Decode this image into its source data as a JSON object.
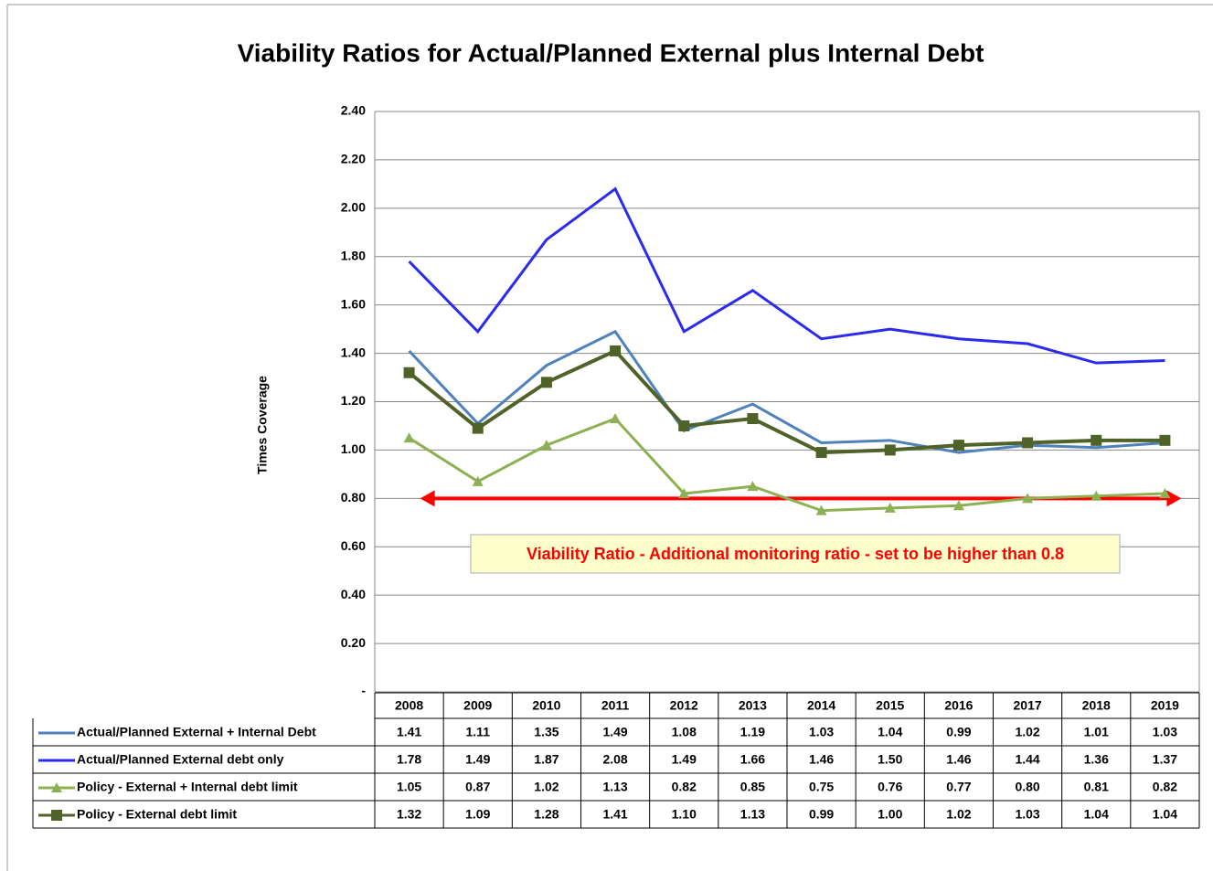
{
  "chart_data": {
    "type": "line",
    "title": "Viability Ratios for Actual/Planned External plus Internal Debt",
    "y_label": "Times Coverage",
    "categories": [
      "2008",
      "2009",
      "2010",
      "2011",
      "2012",
      "2013",
      "2014",
      "2015",
      "2016",
      "2017",
      "2018",
      "2019"
    ],
    "ylim": [
      0,
      2.4
    ],
    "yticks": [
      {
        "value": 0,
        "label": "-"
      },
      {
        "value": 0.2,
        "label": "0.20"
      },
      {
        "value": 0.4,
        "label": "0.40"
      },
      {
        "value": 0.6,
        "label": "0.60"
      },
      {
        "value": 0.8,
        "label": "0.80"
      },
      {
        "value": 1.0,
        "label": "1.00"
      },
      {
        "value": 1.2,
        "label": "1.20"
      },
      {
        "value": 1.4,
        "label": "1.40"
      },
      {
        "value": 1.6,
        "label": "1.60"
      },
      {
        "value": 1.8,
        "label": "1.80"
      },
      {
        "value": 2.0,
        "label": "2.00"
      },
      {
        "value": 2.2,
        "label": "2.20"
      },
      {
        "value": 2.4,
        "label": "2.40"
      }
    ],
    "grid": true,
    "series": [
      {
        "name": "Actual/Planned External + Internal Debt",
        "color": "#4f81bd",
        "marker": "none",
        "values": [
          1.41,
          1.11,
          1.35,
          1.49,
          1.08,
          1.19,
          1.03,
          1.04,
          0.99,
          1.02,
          1.01,
          1.03
        ],
        "value_labels": [
          "1.41",
          "1.11",
          "1.35",
          "1.49",
          "1.08",
          "1.19",
          "1.03",
          "1.04",
          "0.99",
          "1.02",
          "1.01",
          "1.03"
        ]
      },
      {
        "name": "Actual/Planned External debt only",
        "color": "#2b2bef",
        "marker": "none",
        "values": [
          1.78,
          1.49,
          1.87,
          2.08,
          1.49,
          1.66,
          1.46,
          1.5,
          1.46,
          1.44,
          1.36,
          1.37
        ],
        "value_labels": [
          "1.78",
          "1.49",
          "1.87",
          "2.08",
          "1.49",
          "1.66",
          "1.46",
          "1.50",
          "1.46",
          "1.44",
          "1.36",
          "1.37"
        ]
      },
      {
        "name": "Policy - External + Internal debt limit",
        "color": "#8db052",
        "marker": "triangle",
        "values": [
          1.05,
          0.87,
          1.02,
          1.13,
          0.82,
          0.85,
          0.75,
          0.76,
          0.77,
          0.8,
          0.81,
          0.82
        ],
        "value_labels": [
          "1.05",
          "0.87",
          "1.02",
          "1.13",
          "0.82",
          "0.85",
          "0.75",
          "0.76",
          "0.77",
          "0.80",
          "0.81",
          "0.82"
        ]
      },
      {
        "name": "Policy - External debt limit",
        "color": "#4f6228",
        "marker": "square",
        "values": [
          1.32,
          1.09,
          1.28,
          1.41,
          1.1,
          1.13,
          0.99,
          1.0,
          1.02,
          1.03,
          1.04,
          1.04
        ],
        "value_labels": [
          "1.32",
          "1.09",
          "1.28",
          "1.41",
          "1.10",
          "1.13",
          "0.99",
          "1.00",
          "1.02",
          "1.03",
          "1.04",
          "1.04"
        ]
      }
    ],
    "threshold": {
      "value": 0.8,
      "color": "#ff0000"
    },
    "annotation": "Viability Ratio - Additional monitoring ratio - set to be higher than 0.8"
  }
}
